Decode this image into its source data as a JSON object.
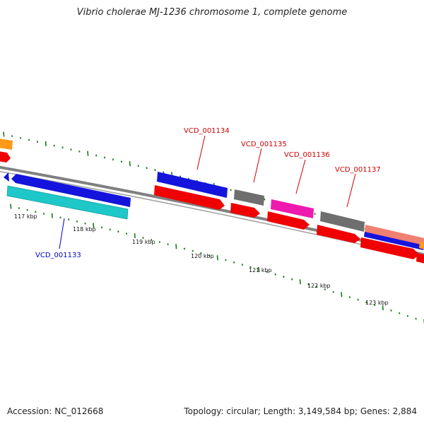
{
  "title": "Vibrio cholerae MJ-1236 chromosome 1, complete genome",
  "footer": {
    "accession": "Accession: NC_012668",
    "stats": "Topology: circular; Length: 3,149,584 bp; Genes: 2,884"
  },
  "colors": {
    "backbone": "#888888",
    "tick": "#1a7a1a",
    "blue": "#1414dc",
    "cyan": "#1ec8c8",
    "red": "#f00000",
    "gray": "#6e6e6e",
    "magenta": "#ee1ab0",
    "orange": "#ff9a1a",
    "salmon": "#f08070",
    "label_red": "#cc0000",
    "label_blue": "#0000cc"
  },
  "scale": {
    "labels": [
      "117 kbp",
      "118 kbp",
      "119 kbp",
      "120 kbp",
      "121 kbp",
      "122 kbp",
      "123 kbp"
    ]
  },
  "gene_labels": [
    {
      "id": "VCD_001134",
      "color": "label_red"
    },
    {
      "id": "VCD_001135",
      "color": "label_red"
    },
    {
      "id": "VCD_001136",
      "color": "label_red"
    },
    {
      "id": "VCD_001137",
      "color": "label_red"
    },
    {
      "id": "VCD_001133",
      "color": "label_blue"
    }
  ]
}
